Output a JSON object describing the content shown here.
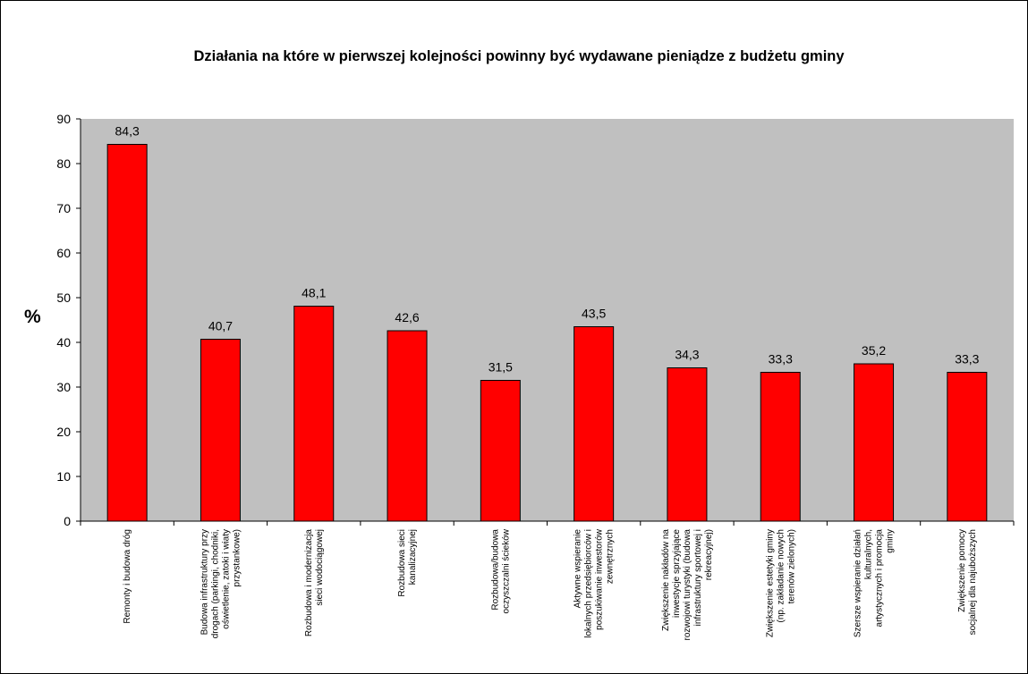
{
  "chart_data": {
    "type": "bar",
    "title": "Działania na które w pierwszej kolejności powinny być wydawane pieniądze z budżetu gminy",
    "xlabel": "",
    "ylabel": "%",
    "ylim": [
      0,
      90
    ],
    "yticks": [
      0,
      10,
      20,
      30,
      40,
      50,
      60,
      70,
      80,
      90
    ],
    "grid": false,
    "legend": "none",
    "categories": [
      [
        "Remonty i budowa dróg"
      ],
      [
        "Budowa infrastruktury przy",
        "drogach (parkingi, chodniki,",
        "oświetlenie, zatoki i wiaty",
        "przystankowe)"
      ],
      [
        "Rozbudowa i modernizacja",
        "sieci wodociągowej"
      ],
      [
        "Rozbudowa sieci",
        "kanalizacyjnej"
      ],
      [
        "Rozbudowa/budowa",
        "oczyszczalni ścieków"
      ],
      [
        "Aktywne wspieranie",
        "lokalnych przedsiębiorców i",
        "poszukiwanie inwestorów",
        "zewnętrznych"
      ],
      [
        "Zwiększenie nakładów na",
        "inwestycje sprzyjające",
        "rozwojowi turystyki (budowa",
        "infrastruktury sportowej i",
        "rekreacyjnej)"
      ],
      [
        "Zwiększenie estetyki gminy",
        "(np. zakładanie nowych",
        "terenów zielonych)"
      ],
      [
        "Szersze wspieranie działań",
        "kulturalnych,",
        "artystycznych i promocja",
        "gminy"
      ],
      [
        "Zwiększenie pomocy",
        "socjalnej dla najuboższych"
      ]
    ],
    "values": [
      84.3,
      40.7,
      48.1,
      42.6,
      31.5,
      43.5,
      34.3,
      33.3,
      35.2,
      33.3
    ],
    "value_labels": [
      "84,3",
      "40,7",
      "48,1",
      "42,6",
      "31,5",
      "43,5",
      "34,3",
      "33,3",
      "35,2",
      "33,3"
    ],
    "colors": {
      "bar": "#ff0000",
      "bar_border": "#000000",
      "plot_background": "#c0c0c0",
      "page_background": "#ffffff"
    }
  }
}
